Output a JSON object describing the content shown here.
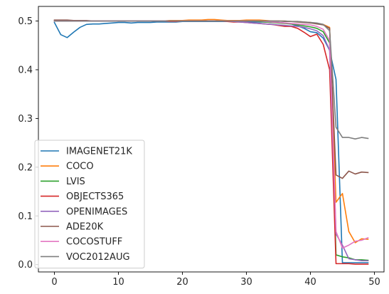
{
  "chart_data": {
    "type": "line",
    "title": "",
    "xlabel": "",
    "ylabel": "",
    "xlim": [
      -2.5,
      51.5
    ],
    "ylim": [
      -0.015,
      0.53
    ],
    "xticks": [
      0,
      10,
      20,
      30,
      40,
      50
    ],
    "xtick_labels": [
      "0",
      "10",
      "20",
      "30",
      "40",
      "50"
    ],
    "yticks": [
      0.0,
      0.1,
      0.2,
      0.3,
      0.4,
      0.5
    ],
    "ytick_labels": [
      "0.0",
      "0.1",
      "0.2",
      "0.3",
      "0.4",
      "0.5"
    ],
    "grid": false,
    "legend_position": "lower-left",
    "x": [
      0,
      1,
      2,
      3,
      4,
      5,
      6,
      7,
      8,
      9,
      10,
      11,
      12,
      13,
      14,
      15,
      16,
      17,
      18,
      19,
      20,
      21,
      22,
      23,
      24,
      25,
      26,
      27,
      28,
      29,
      30,
      31,
      32,
      33,
      34,
      35,
      36,
      37,
      38,
      39,
      40,
      41,
      42,
      43,
      44,
      45,
      46,
      47,
      48,
      49
    ],
    "series": [
      {
        "name": "IMAGENET21K",
        "color": "#1f77b4",
        "values": [
          0.497,
          0.472,
          0.466,
          0.477,
          0.487,
          0.493,
          0.494,
          0.494,
          0.495,
          0.496,
          0.497,
          0.497,
          0.496,
          0.497,
          0.497,
          0.497,
          0.498,
          0.498,
          0.498,
          0.498,
          0.499,
          0.499,
          0.499,
          0.499,
          0.499,
          0.499,
          0.499,
          0.499,
          0.499,
          0.499,
          0.499,
          0.498,
          0.498,
          0.498,
          0.497,
          0.497,
          0.496,
          0.494,
          0.49,
          0.485,
          0.478,
          0.476,
          0.465,
          0.44,
          0.38,
          0.004,
          0.004,
          0.004,
          0.004,
          0.004
        ]
      },
      {
        "name": "COCO",
        "color": "#ff7f0e",
        "values": [
          0.5,
          0.5,
          0.501,
          0.501,
          0.5,
          0.5,
          0.5,
          0.5,
          0.5,
          0.5,
          0.5,
          0.5,
          0.5,
          0.5,
          0.5,
          0.5,
          0.5,
          0.5,
          0.501,
          0.501,
          0.501,
          0.502,
          0.502,
          0.502,
          0.503,
          0.503,
          0.502,
          0.501,
          0.501,
          0.501,
          0.502,
          0.502,
          0.502,
          0.501,
          0.5,
          0.5,
          0.5,
          0.499,
          0.499,
          0.498,
          0.497,
          0.495,
          0.493,
          0.487,
          0.128,
          0.146,
          0.068,
          0.045,
          0.053,
          0.052
        ]
      },
      {
        "name": "LVIS",
        "color": "#2ca02c",
        "values": [
          0.5,
          0.5,
          0.5,
          0.5,
          0.5,
          0.5,
          0.5,
          0.5,
          0.5,
          0.5,
          0.5,
          0.5,
          0.5,
          0.5,
          0.5,
          0.5,
          0.5,
          0.5,
          0.5,
          0.5,
          0.5,
          0.5,
          0.5,
          0.5,
          0.5,
          0.5,
          0.5,
          0.5,
          0.5,
          0.5,
          0.5,
          0.5,
          0.499,
          0.498,
          0.497,
          0.496,
          0.495,
          0.494,
          0.492,
          0.49,
          0.488,
          0.485,
          0.478,
          0.455,
          0.02,
          0.016,
          0.014,
          0.01,
          0.01,
          0.009
        ]
      },
      {
        "name": "OBJECTS365",
        "color": "#d62728",
        "values": [
          0.5,
          0.5,
          0.5,
          0.5,
          0.5,
          0.5,
          0.5,
          0.5,
          0.5,
          0.5,
          0.5,
          0.5,
          0.5,
          0.5,
          0.5,
          0.5,
          0.5,
          0.5,
          0.499,
          0.499,
          0.5,
          0.5,
          0.5,
          0.5,
          0.5,
          0.5,
          0.5,
          0.499,
          0.498,
          0.498,
          0.497,
          0.496,
          0.495,
          0.494,
          0.493,
          0.491,
          0.489,
          0.489,
          0.485,
          0.477,
          0.468,
          0.473,
          0.452,
          0.4,
          0.002,
          0.002,
          0.002,
          0.001,
          0.001,
          0.001
        ]
      },
      {
        "name": "OPENIMAGES",
        "color": "#9467bd",
        "values": [
          0.5,
          0.5,
          0.5,
          0.5,
          0.5,
          0.5,
          0.5,
          0.5,
          0.5,
          0.5,
          0.5,
          0.5,
          0.5,
          0.5,
          0.5,
          0.5,
          0.5,
          0.5,
          0.5,
          0.5,
          0.5,
          0.5,
          0.5,
          0.5,
          0.5,
          0.5,
          0.5,
          0.5,
          0.499,
          0.498,
          0.497,
          0.496,
          0.495,
          0.494,
          0.493,
          0.492,
          0.491,
          0.49,
          0.489,
          0.487,
          0.484,
          0.48,
          0.47,
          0.44,
          0.063,
          0.04,
          0.012,
          0.01,
          0.008,
          0.008
        ]
      },
      {
        "name": "ADE20K",
        "color": "#8c564b",
        "values": [
          0.502,
          0.502,
          0.502,
          0.501,
          0.501,
          0.501,
          0.5,
          0.5,
          0.5,
          0.5,
          0.5,
          0.5,
          0.5,
          0.5,
          0.5,
          0.5,
          0.5,
          0.5,
          0.5,
          0.5,
          0.5,
          0.5,
          0.5,
          0.5,
          0.5,
          0.5,
          0.5,
          0.5,
          0.5,
          0.5,
          0.5,
          0.5,
          0.5,
          0.5,
          0.5,
          0.5,
          0.499,
          0.499,
          0.498,
          0.497,
          0.496,
          0.494,
          0.492,
          0.485,
          0.184,
          0.177,
          0.192,
          0.186,
          0.19,
          0.189
        ]
      },
      {
        "name": "COCOSTUFF",
        "color": "#e377c2",
        "values": [
          0.5,
          0.5,
          0.5,
          0.5,
          0.5,
          0.5,
          0.5,
          0.5,
          0.5,
          0.5,
          0.5,
          0.5,
          0.5,
          0.5,
          0.5,
          0.5,
          0.5,
          0.5,
          0.5,
          0.5,
          0.5,
          0.5,
          0.5,
          0.5,
          0.5,
          0.5,
          0.5,
          0.5,
          0.5,
          0.5,
          0.5,
          0.5,
          0.5,
          0.499,
          0.498,
          0.497,
          0.496,
          0.495,
          0.494,
          0.493,
          0.492,
          0.489,
          0.483,
          0.46,
          0.068,
          0.034,
          0.04,
          0.048,
          0.05,
          0.055
        ]
      },
      {
        "name": "VOC2012AUG",
        "color": "#7f7f7f",
        "values": [
          0.5,
          0.5,
          0.5,
          0.5,
          0.5,
          0.5,
          0.5,
          0.5,
          0.5,
          0.5,
          0.5,
          0.5,
          0.5,
          0.5,
          0.5,
          0.5,
          0.5,
          0.5,
          0.5,
          0.5,
          0.5,
          0.5,
          0.5,
          0.5,
          0.5,
          0.5,
          0.5,
          0.5,
          0.5,
          0.5,
          0.5,
          0.5,
          0.5,
          0.5,
          0.5,
          0.5,
          0.5,
          0.499,
          0.499,
          0.498,
          0.497,
          0.496,
          0.493,
          0.48,
          0.282,
          0.261,
          0.261,
          0.258,
          0.261,
          0.259
        ]
      }
    ]
  }
}
